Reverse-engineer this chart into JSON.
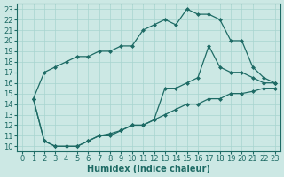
{
  "title": "",
  "xlabel": "Humidex (Indice chaleur)",
  "ylabel": "",
  "xlim": [
    -0.5,
    23.5
  ],
  "ylim": [
    9.5,
    23.5
  ],
  "xticks": [
    0,
    1,
    2,
    3,
    4,
    5,
    6,
    7,
    8,
    9,
    10,
    11,
    12,
    13,
    14,
    15,
    16,
    17,
    18,
    19,
    20,
    21,
    22,
    23
  ],
  "yticks": [
    10,
    11,
    12,
    13,
    14,
    15,
    16,
    17,
    18,
    19,
    20,
    21,
    22,
    23
  ],
  "background_color": "#cce8e4",
  "grid_color": "#a8d4cf",
  "line_color": "#1e6b65",
  "curve1_x": [
    1,
    2,
    3,
    4,
    5,
    6,
    7,
    8,
    9,
    10,
    11,
    12,
    13,
    14,
    15,
    16,
    17,
    18,
    19,
    20,
    21,
    22,
    23
  ],
  "curve1_y": [
    14.5,
    17.0,
    17.5,
    18.0,
    18.5,
    18.5,
    19.0,
    19.0,
    19.5,
    19.5,
    21.0,
    21.5,
    22.0,
    21.5,
    23.0,
    22.5,
    22.5,
    22.0,
    20.0,
    20.0,
    17.5,
    16.5,
    16.0
  ],
  "curve2_x": [
    1,
    2,
    3,
    4,
    5,
    6,
    7,
    8,
    9,
    10,
    11,
    12,
    13,
    14,
    15,
    16,
    17,
    18,
    19,
    20,
    21,
    22,
    23
  ],
  "curve2_y": [
    14.5,
    10.5,
    10.0,
    10.0,
    10.0,
    10.5,
    11.0,
    11.0,
    11.5,
    12.0,
    12.0,
    12.5,
    15.5,
    15.5,
    16.0,
    16.5,
    19.5,
    17.5,
    17.0,
    17.0,
    16.5,
    16.0,
    16.0
  ],
  "curve3_x": [
    1,
    2,
    3,
    4,
    5,
    6,
    7,
    8,
    9,
    10,
    11,
    12,
    13,
    14,
    15,
    16,
    17,
    18,
    19,
    20,
    21,
    22,
    23
  ],
  "curve3_y": [
    14.5,
    10.5,
    10.0,
    10.0,
    10.0,
    10.5,
    11.0,
    11.2,
    11.5,
    12.0,
    12.0,
    12.5,
    13.0,
    13.5,
    14.0,
    14.0,
    14.5,
    14.5,
    15.0,
    15.0,
    15.2,
    15.5,
    15.5
  ],
  "fontsize_xlabel": 7,
  "fontsize_ticks": 6
}
